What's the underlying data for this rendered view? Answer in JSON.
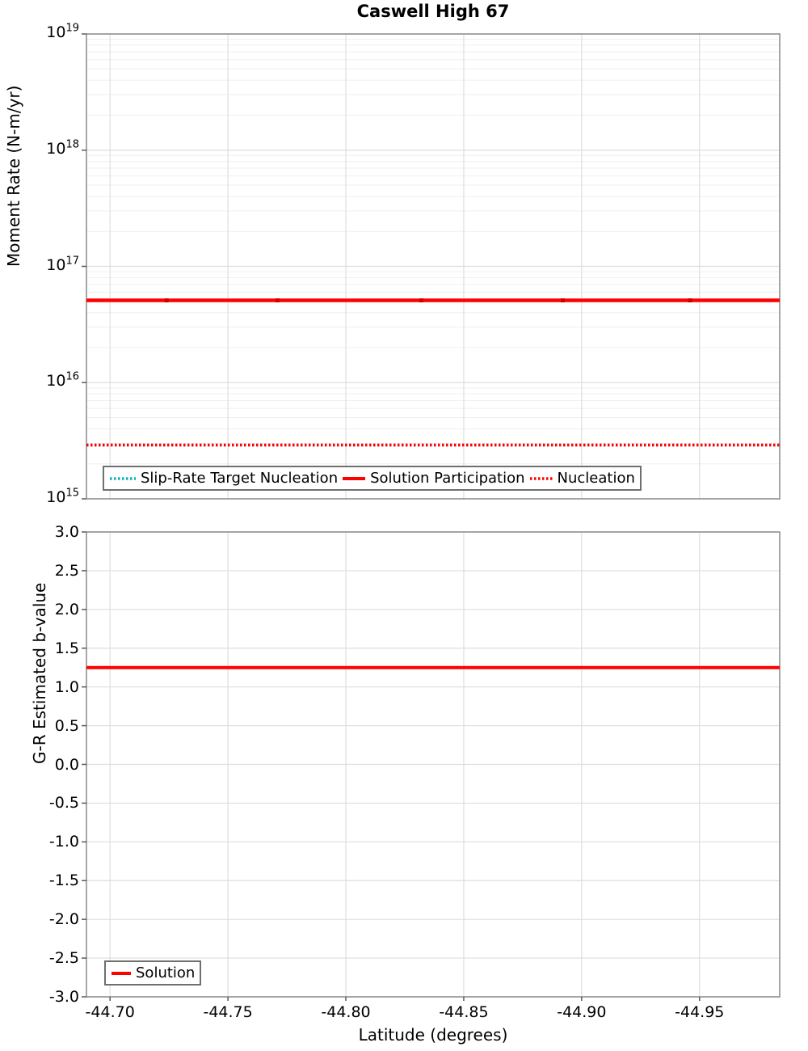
{
  "colors": {
    "solution_red": "#ff0000",
    "marker_red": "#cc0000",
    "slip_rate_cyan": "#0db2ba",
    "grid_major": "#dedede",
    "grid_minor": "#efefef",
    "axis_border": "#8a8a8a",
    "tick_mark": "#5a5a5a",
    "legend_border": "#6f6f6f"
  },
  "chart_data": [
    {
      "type": "line",
      "title": "Caswell High 67",
      "ylabel": "Moment Rate (N-m/yr)",
      "yscale": "log",
      "ylim_exponents": [
        15,
        19
      ],
      "ytick_exponents": [
        19,
        18,
        17,
        16,
        15
      ],
      "xlim": [
        -44.69,
        -44.984
      ],
      "x_axis_reversed": true,
      "xticks": [
        -44.7,
        -44.75,
        -44.8,
        -44.85,
        -44.9,
        -44.95
      ],
      "grid": "on",
      "legend_position": "inside bottom-left",
      "series": [
        {
          "name": "Slip-Rate Target Nucleation",
          "style": "dotted",
          "color": "#0db2ba",
          "constant_value": 2900000000000000.0
        },
        {
          "name": "Solution Participation",
          "style": "solid",
          "color": "#ff0000",
          "marker_color": "#cc0000",
          "constant_value": 5.1e+16,
          "marker_latitudes": [
            -44.724,
            -44.771,
            -44.832,
            -44.892,
            -44.946
          ]
        },
        {
          "name": "Nucleation",
          "style": "dotted",
          "color": "#ff0000",
          "constant_value": 2900000000000000.0
        }
      ]
    },
    {
      "type": "line",
      "ylabel": "G-R Estimated b-value",
      "xlabel": "Latitude (degrees)",
      "ylim": [
        -3.0,
        3.0
      ],
      "yticks": [
        3.0,
        2.5,
        2.0,
        1.5,
        1.0,
        0.5,
        0.0,
        -0.5,
        -1.0,
        -1.5,
        -2.0,
        -2.5,
        -3.0
      ],
      "ytick_labels": [
        "3.0",
        "2.5",
        "2.0",
        "1.5",
        "1.0",
        "0.5",
        "0.0",
        "-0.5",
        "-1.0",
        "-1.5",
        "-2.0",
        "-2.5",
        "-3.0"
      ],
      "xlim": [
        -44.69,
        -44.984
      ],
      "x_axis_reversed": true,
      "xticks": [
        -44.7,
        -44.75,
        -44.8,
        -44.85,
        -44.9,
        -44.95
      ],
      "xtick_labels": [
        "-44.70",
        "-44.75",
        "-44.80",
        "-44.85",
        "-44.90",
        "-44.95"
      ],
      "grid": "on",
      "legend_position": "inside bottom-left",
      "series": [
        {
          "name": "Solution",
          "style": "solid",
          "color": "#ff0000",
          "constant_value": 1.25
        }
      ]
    }
  ]
}
